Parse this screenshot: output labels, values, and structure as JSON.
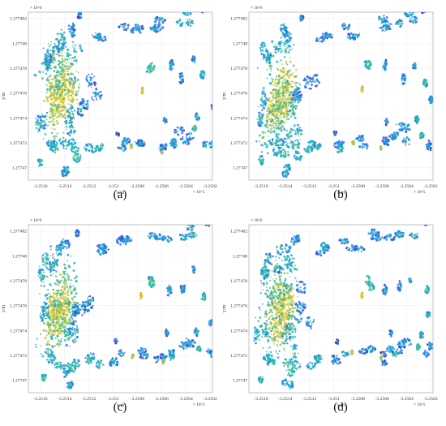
{
  "chart_data": [
    {
      "type": "scatter",
      "panel_label": "(a)",
      "xlabel": "x/m",
      "ylabel": "y/m",
      "x_exponent": "× 10^5",
      "y_exponent": "× 10^6",
      "x_ticks": [
        "-3.2516",
        "-3.2514",
        "-3.2512",
        "-3.251",
        "-3.2508",
        "-3.2506",
        "-3.2504",
        "-3.2502"
      ],
      "y_ticks": [
        "1.27747",
        "1.277472",
        "1.277474",
        "1.277476",
        "1.277478",
        "1.27748",
        "1.277482"
      ],
      "xlim": [
        -3.2517,
        -3.25018
      ],
      "ylim": [
        1.277469,
        1.2774825
      ],
      "grid": true,
      "colormap": [
        "#3e26a8",
        "#2f6ff3",
        "#17a8d8",
        "#2ebf9f",
        "#8fc95a",
        "#e0b934",
        "#f9dc27"
      ],
      "height_scale": [
        0,
        1
      ]
    },
    {
      "type": "scatter",
      "panel_label": "(b)",
      "xlabel": "x/m",
      "ylabel": "y/m",
      "x_exponent": "× 10^5",
      "y_exponent": "× 10^6",
      "x_ticks": [
        "-3.2516",
        "-3.2514",
        "-3.2512",
        "-3.251",
        "-3.2508",
        "-3.2506",
        "-3.2504",
        "-3.2502"
      ],
      "y_ticks": [
        "1.27747",
        "1.277472",
        "1.277474",
        "1.277476",
        "1.277478",
        "1.27748",
        "1.277482"
      ],
      "xlim": [
        -3.2517,
        -3.25018
      ],
      "ylim": [
        1.277469,
        1.2774825
      ],
      "grid": true,
      "colormap": [
        "#3e26a8",
        "#2f6ff3",
        "#17a8d8",
        "#2ebf9f",
        "#8fc95a",
        "#e0b934",
        "#f9dc27"
      ],
      "height_scale": [
        0,
        1
      ]
    },
    {
      "type": "scatter",
      "panel_label": "(c)",
      "xlabel": "x/m",
      "ylabel": "y/m",
      "x_exponent": "× 10^5",
      "y_exponent": "× 10^6",
      "x_ticks": [
        "-3.2516",
        "-3.2514",
        "-3.2512",
        "-3.251",
        "-3.2508",
        "-3.2506",
        "-3.2504",
        "-3.2502"
      ],
      "y_ticks": [
        "1.27747",
        "1.277472",
        "1.277474",
        "1.277476",
        "1.277478",
        "1.27748",
        "1.277482"
      ],
      "xlim": [
        -3.2517,
        -3.25018
      ],
      "ylim": [
        1.277469,
        1.2774825
      ],
      "grid": true,
      "colormap": [
        "#3e26a8",
        "#2f6ff3",
        "#17a8d8",
        "#2ebf9f",
        "#8fc95a",
        "#e0b934",
        "#f9dc27"
      ],
      "height_scale": [
        0,
        1
      ]
    },
    {
      "type": "scatter",
      "panel_label": "(d)",
      "xlabel": "x/m",
      "ylabel": "y/m",
      "x_exponent": "× 10^5",
      "y_exponent": "× 10^6",
      "x_ticks": [
        "-3.2516",
        "-3.2514",
        "-3.2512",
        "-3.251",
        "-3.2508",
        "-3.2506",
        "-3.2504",
        "-3.2502"
      ],
      "y_ticks": [
        "1.27747",
        "1.277472",
        "1.277474",
        "1.277476",
        "1.277478",
        "1.27748",
        "1.277482"
      ],
      "xlim": [
        -3.2517,
        -3.25018
      ],
      "ylim": [
        1.277469,
        1.2774825
      ],
      "grid": true,
      "colormap": [
        "#3e26a8",
        "#2f6ff3",
        "#17a8d8",
        "#2ebf9f",
        "#8fc95a",
        "#e0b934",
        "#f9dc27"
      ],
      "height_scale": [
        0,
        1
      ]
    }
  ]
}
